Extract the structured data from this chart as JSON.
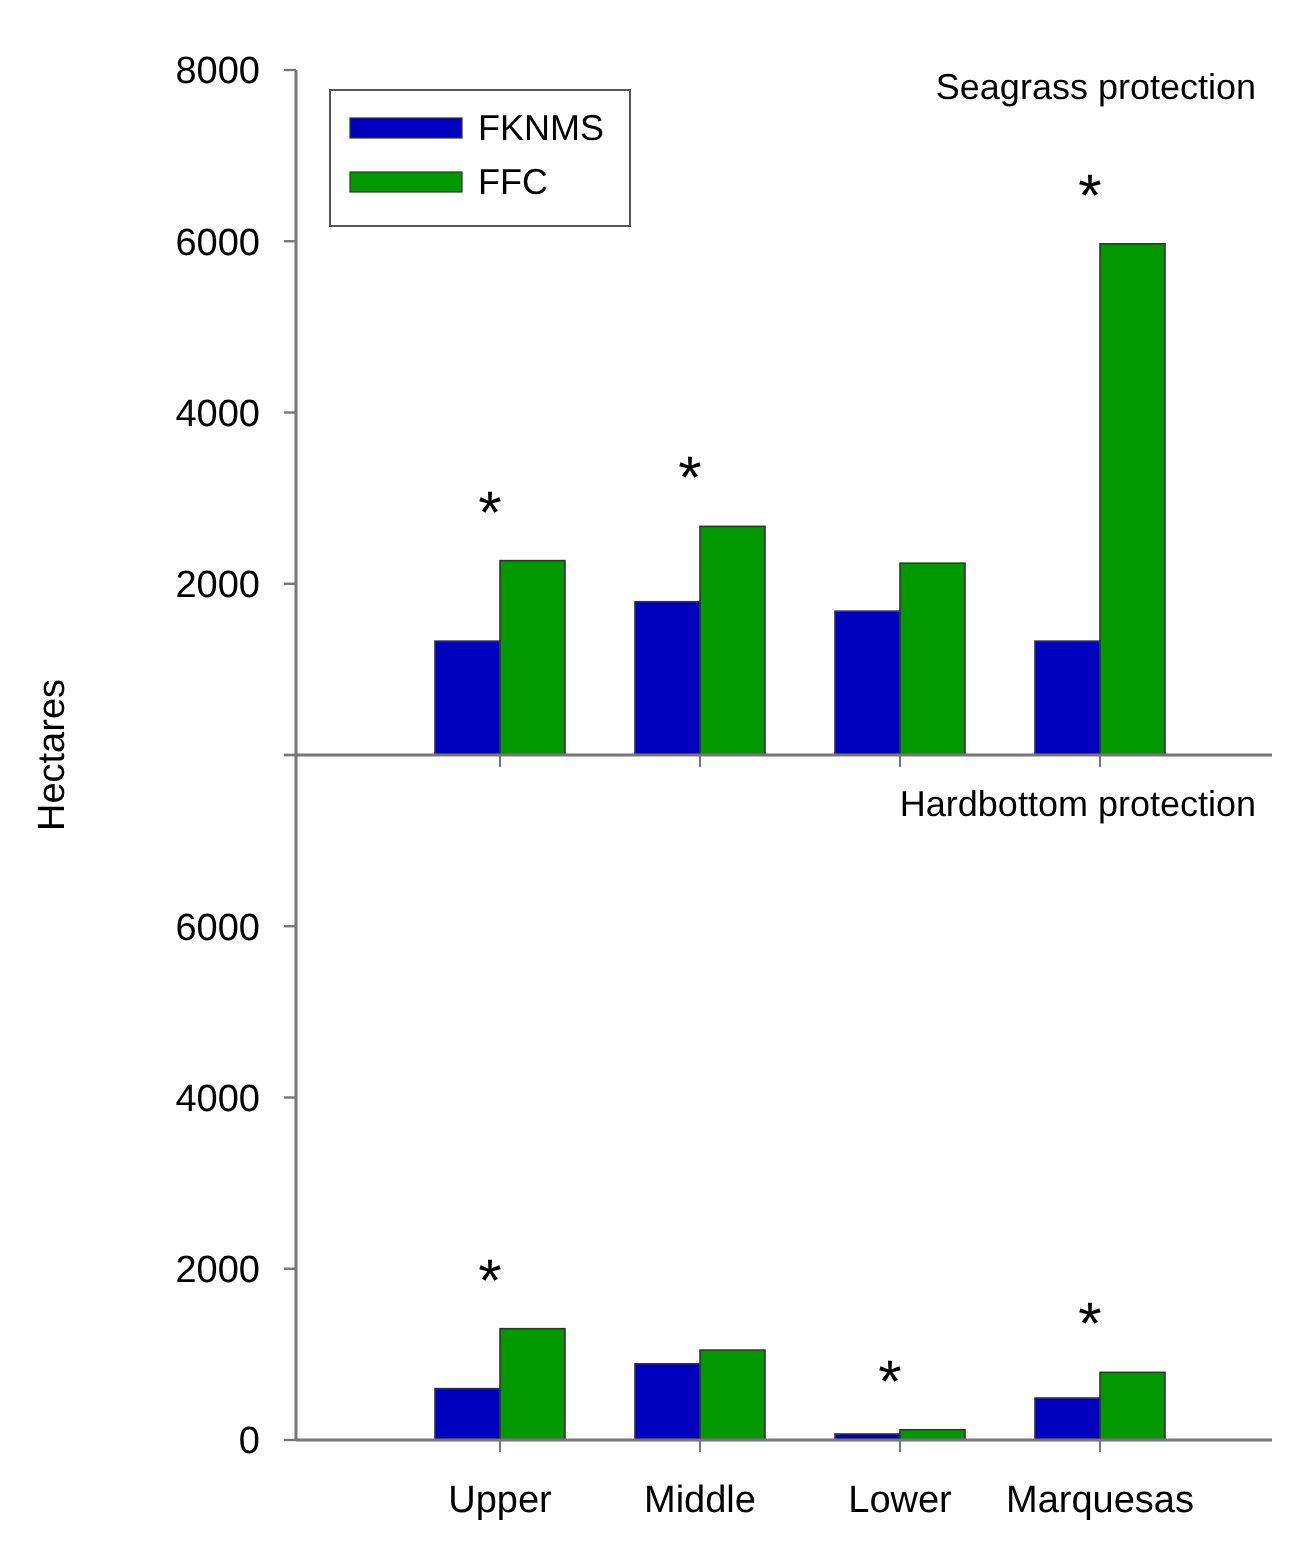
{
  "chart_data": [
    {
      "type": "bar",
      "title": "Seagrass protection",
      "ylabel": "Hectares",
      "categories": [
        "Upper",
        "Middle",
        "Lower",
        "Marquesas"
      ],
      "series": [
        {
          "name": "FKNMS",
          "color": "#0000c0",
          "values": [
            1330,
            1790,
            1680,
            1330
          ]
        },
        {
          "name": "FFC",
          "color": "#009900",
          "values": [
            2270,
            2670,
            2240,
            5970
          ]
        }
      ],
      "ylim": [
        0,
        8000
      ],
      "yticks": [
        {
          "value": 0,
          "label": null
        },
        2000,
        4000,
        6000,
        8000
      ],
      "tick_labels": "y",
      "legend": "top left",
      "grid": false,
      "annotations": [
        {
          "text": "*",
          "x": "Upper",
          "y": 2270
        },
        {
          "text": "*",
          "x": "Middle",
          "y": 2670
        },
        {
          "text": "*",
          "x": "Marquesas",
          "y": 5970
        }
      ]
    },
    {
      "type": "bar",
      "title": "Hardbottom protection",
      "categories": [
        "Upper",
        "Middle",
        "Lower",
        "Marquesas"
      ],
      "series": [
        {
          "color": "#0000c0",
          "values": [
            600,
            890,
            70,
            490
          ]
        },
        {
          "color": "#009900",
          "values": [
            1300,
            1050,
            120,
            790
          ]
        }
      ],
      "ylim": [
        0,
        8000
      ],
      "yticks": [
        0,
        2000,
        4000,
        6000,
        {
          "value": 8000,
          "label": null
        }
      ],
      "grid": false,
      "annotations": [
        {
          "text": "*",
          "x": "Upper",
          "y": 1300
        },
        {
          "text": "*",
          "x": "Lower",
          "y": 120
        },
        {
          "text": "*",
          "x": "Marquesas",
          "y": 790
        }
      ]
    }
  ]
}
